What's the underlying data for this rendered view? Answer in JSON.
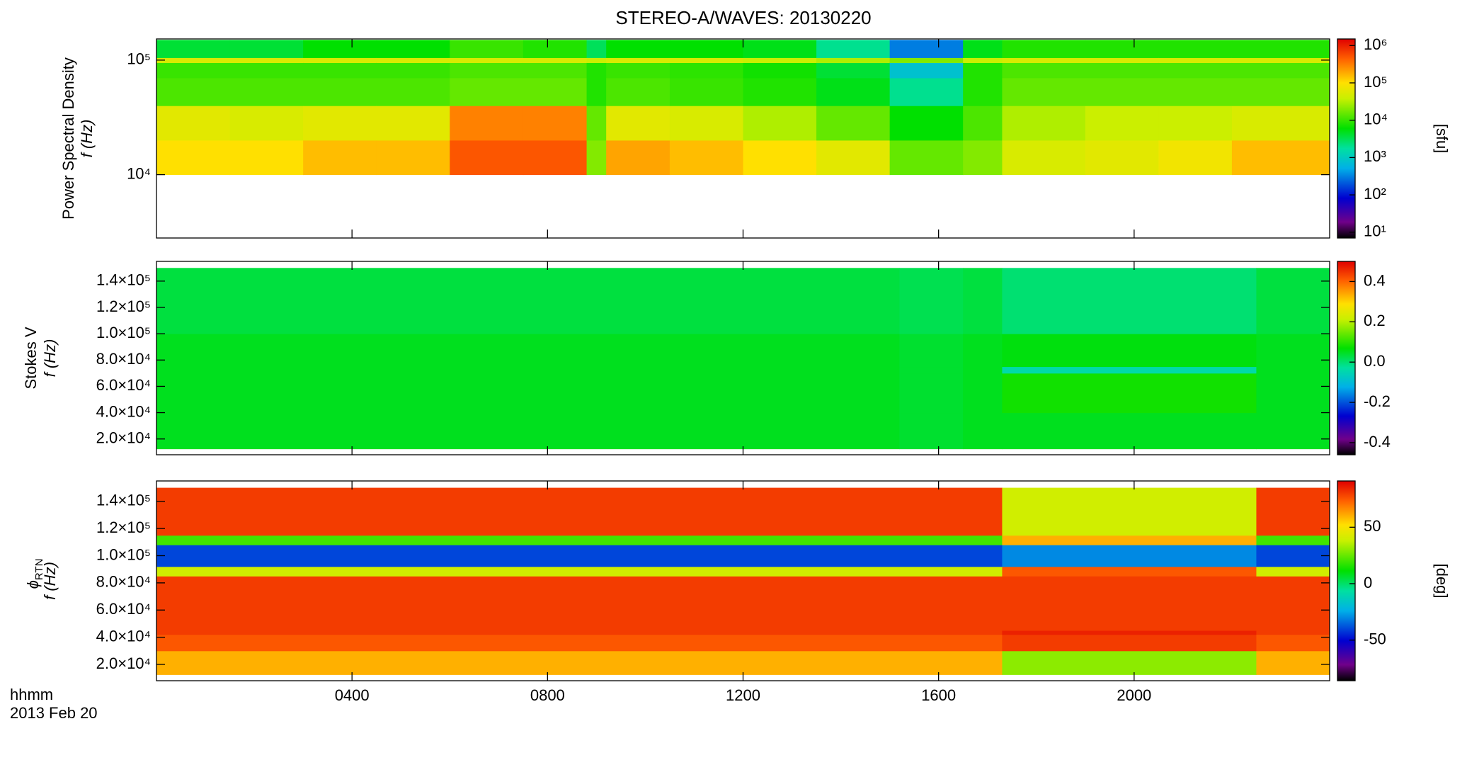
{
  "title": "STEREO-A/WAVES: 20130220",
  "x_axis": {
    "label": "hhmm",
    "date": "2013 Feb 20",
    "xlim": [
      0,
      24
    ],
    "xticks": [
      {
        "value": 4,
        "label": "0400"
      },
      {
        "value": 8,
        "label": "0800"
      },
      {
        "value": 12,
        "label": "1200"
      },
      {
        "value": 16,
        "label": "1600"
      },
      {
        "value": 20,
        "label": "2000"
      }
    ]
  },
  "chart_data": [
    {
      "type": "heatmap",
      "ylabel": "Power Spectral Density",
      "ylabel2": "f (Hz)",
      "ylog": true,
      "ylim": [
        2800,
        153000
      ],
      "yticks": [
        {
          "value": 10000,
          "label": "10⁴"
        },
        {
          "value": 100000,
          "label": "10⁵"
        }
      ],
      "x_edges": [
        0,
        1.5,
        3,
        4.5,
        6,
        7.5,
        8.8,
        9.2,
        10.5,
        12,
        13.5,
        15,
        16.5,
        17.3,
        19,
        20.5,
        22,
        24
      ],
      "y_edges": [
        10000,
        20000,
        40000,
        70000,
        95000,
        105000,
        150000
      ],
      "values": [
        [
          100000,
          60000,
          12000,
          10000,
          50000,
          4000
        ],
        [
          100000,
          50000,
          12000,
          10000,
          50000,
          4000
        ],
        [
          150000,
          60000,
          12000,
          10000,
          50000,
          6000
        ],
        [
          150000,
          60000,
          12000,
          10000,
          50000,
          6000
        ],
        [
          500000,
          300000,
          15000,
          12000,
          50000,
          10000
        ],
        [
          500000,
          300000,
          15000,
          12000,
          50000,
          8000
        ],
        [
          20000,
          15000,
          8000,
          8000,
          40000,
          3000
        ],
        [
          200000,
          60000,
          12000,
          10000,
          50000,
          6000
        ],
        [
          150000,
          50000,
          10000,
          9000,
          50000,
          6000
        ],
        [
          100000,
          30000,
          8000,
          7000,
          40000,
          5000
        ],
        [
          60000,
          15000,
          5000,
          4000,
          30000,
          2000
        ],
        [
          15000,
          6000,
          2000,
          800,
          20000,
          300
        ],
        [
          20000,
          12000,
          8000,
          8000,
          40000,
          5000
        ],
        [
          50000,
          30000,
          15000,
          12000,
          50000,
          8000
        ],
        [
          60000,
          40000,
          15000,
          12000,
          50000,
          8000
        ],
        [
          80000,
          40000,
          15000,
          12000,
          50000,
          8000
        ],
        [
          150000,
          50000,
          15000,
          12000,
          50000,
          8000
        ]
      ],
      "colorbar": {
        "label": "[sfu]",
        "log": true,
        "lim": [
          7,
          1500000
        ],
        "ticks": [
          {
            "value": 10,
            "label": "10¹"
          },
          {
            "value": 100,
            "label": "10²"
          },
          {
            "value": 1000,
            "label": "10³"
          },
          {
            "value": 10000,
            "label": "10⁴"
          },
          {
            "value": 100000,
            "label": "10⁵"
          },
          {
            "value": 1000000,
            "label": "10⁶"
          }
        ]
      }
    },
    {
      "type": "heatmap",
      "ylabel": "Stokes V",
      "ylabel2": "f (Hz)",
      "ylog": false,
      "ylim": [
        8000,
        155000
      ],
      "yticks": [
        {
          "value": 20000,
          "label": "2.0×10⁴"
        },
        {
          "value": 40000,
          "label": "4.0×10⁴"
        },
        {
          "value": 60000,
          "label": "6.0×10⁴"
        },
        {
          "value": 80000,
          "label": "8.0×10⁴"
        },
        {
          "value": 100000,
          "label": "1.0×10⁵"
        },
        {
          "value": 120000,
          "label": "1.2×10⁵"
        },
        {
          "value": 140000,
          "label": "1.4×10⁵"
        }
      ],
      "x_edges": [
        0,
        15.2,
        16.5,
        17.3,
        22.5,
        24
      ],
      "y_edges": [
        12500,
        40000,
        70000,
        75000,
        100000,
        150000
      ],
      "values": [
        [
          0.05,
          0.05,
          0.05,
          0.05,
          0.03
        ],
        [
          0.04,
          0.04,
          0.04,
          0.04,
          0.02
        ],
        [
          0.05,
          0.05,
          0.05,
          0.05,
          0.03
        ],
        [
          0.05,
          0.08,
          -0.04,
          0.06,
          0.0
        ],
        [
          0.05,
          0.05,
          0.05,
          0.05,
          0.03
        ]
      ],
      "colorbar": {
        "label": "",
        "log": false,
        "lim": [
          -0.46,
          0.5
        ],
        "ticks": [
          -0.4,
          -0.2,
          {
            "value": 0,
            "label": "0.0"
          },
          0.2,
          0.4
        ]
      }
    },
    {
      "type": "heatmap",
      "ylabel": "ϕ",
      "ylabel_sub": "RTN",
      "ylabel2": "f (Hz)",
      "ylog": false,
      "ylim": [
        8000,
        155000
      ],
      "yticks": [
        {
          "value": 20000,
          "label": "2.0×10⁴"
        },
        {
          "value": 40000,
          "label": "4.0×10⁴"
        },
        {
          "value": 60000,
          "label": "6.0×10⁴"
        },
        {
          "value": 80000,
          "label": "8.0×10⁴"
        },
        {
          "value": 100000,
          "label": "1.0×10⁵"
        },
        {
          "value": 120000,
          "label": "1.2×10⁵"
        },
        {
          "value": 140000,
          "label": "1.4×10⁵"
        }
      ],
      "x_edges": [
        0,
        17.3,
        22.5,
        24
      ],
      "y_edges": [
        12500,
        30000,
        42000,
        45000,
        85000,
        92000,
        108000,
        115000,
        150000
      ],
      "values": [
        [
          60,
          75,
          80,
          80,
          40,
          -40,
          20,
          80
        ],
        [
          30,
          80,
          85,
          80,
          75,
          -30,
          60,
          40
        ],
        [
          60,
          75,
          80,
          80,
          40,
          -40,
          20,
          80
        ]
      ],
      "colorbar": {
        "label": "[deg]",
        "log": false,
        "lim": [
          -86,
          91
        ],
        "ticks": [
          -50,
          0,
          50
        ]
      }
    }
  ]
}
